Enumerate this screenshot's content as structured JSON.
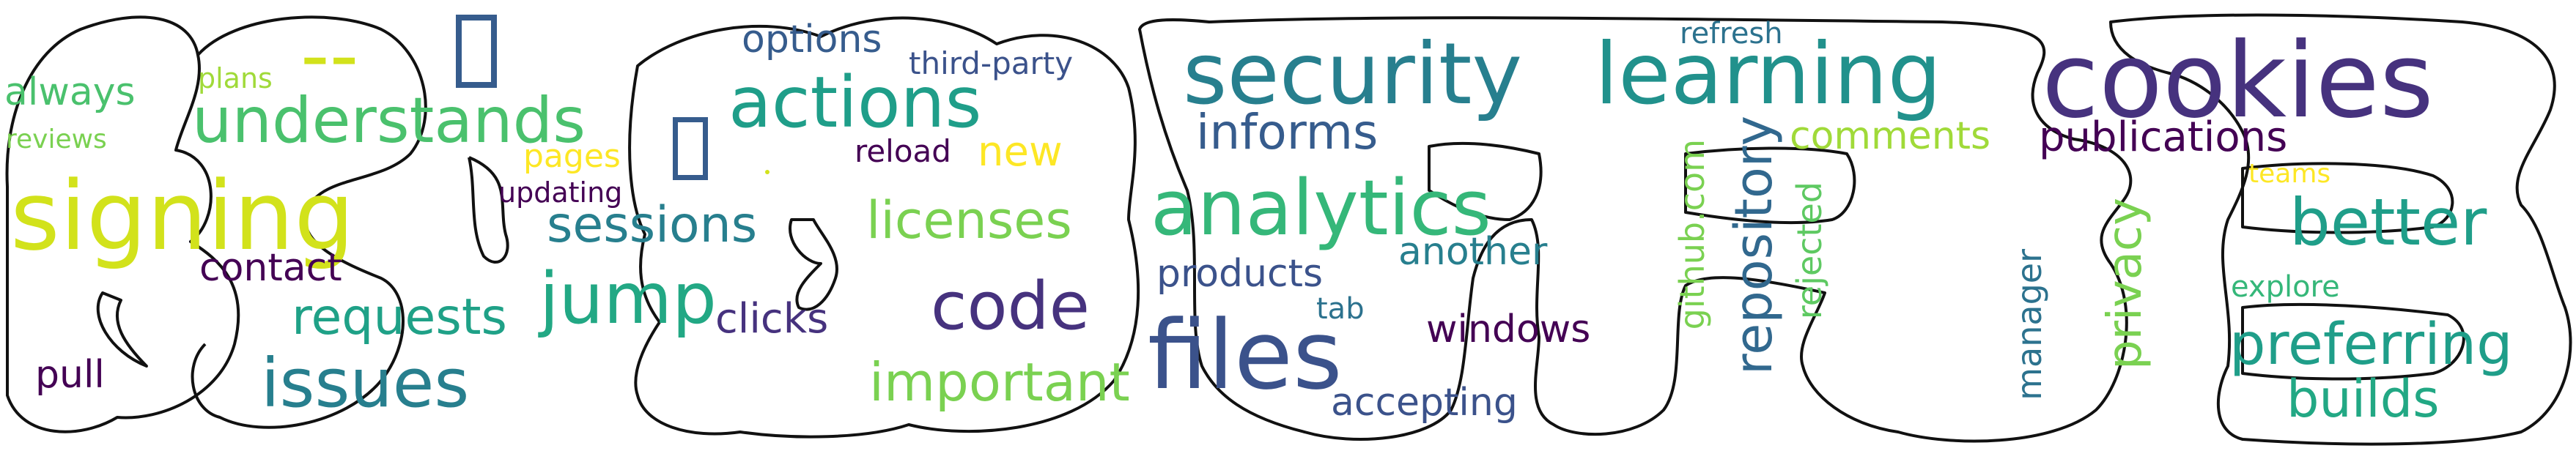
{
  "colors": {
    "outline": "#111111",
    "palette": [
      "#440154",
      "#46327e",
      "#365c8d",
      "#277f8e",
      "#1fa187",
      "#4ac16d",
      "#a0da39",
      "#fde725"
    ]
  },
  "words": [
    {
      "text": "signing",
      "color": "#d2e21b"
    },
    {
      "text": "--",
      "color": "#d2e21b"
    },
    {
      "text": "understands",
      "color": "#4ac16d"
    },
    {
      "text": "always",
      "color": "#4ac16d"
    },
    {
      "text": "plans",
      "color": "#a0da39"
    },
    {
      "text": "reviews",
      "color": "#7ad151"
    },
    {
      "text": "pages",
      "color": "#fde725"
    },
    {
      "text": "updating",
      "color": "#440154"
    },
    {
      "text": "contact",
      "color": "#440154"
    },
    {
      "text": "sessions",
      "color": "#277f8e"
    },
    {
      "text": "requests",
      "color": "#1fa187"
    },
    {
      "text": "jump",
      "color": "#22a884"
    },
    {
      "text": "issues",
      "color": "#277f8e"
    },
    {
      "text": "pull",
      "color": "#440154"
    },
    {
      "text": "clicks",
      "color": "#46327e"
    },
    {
      "text": "options",
      "color": "#365c8d"
    },
    {
      "text": "third-party",
      "color": "#3b528b"
    },
    {
      "text": "actions",
      "color": "#1f9e89"
    },
    {
      "text": "reload",
      "color": "#440154"
    },
    {
      "text": "new",
      "color": "#fde725"
    },
    {
      "text": "licenses",
      "color": "#7ad151"
    },
    {
      "text": "code",
      "color": "#46327e"
    },
    {
      "text": "important",
      "color": "#7ad151"
    },
    {
      "text": "security",
      "color": "#277f8e"
    },
    {
      "text": "learning",
      "color": "#21918c"
    },
    {
      "text": "cookies",
      "color": "#46327e"
    },
    {
      "text": "refresh",
      "color": "#2c728e"
    },
    {
      "text": "informs",
      "color": "#365c8d"
    },
    {
      "text": "analytics",
      "color": "#35b779"
    },
    {
      "text": "products",
      "color": "#3b528b"
    },
    {
      "text": "another",
      "color": "#277f8e"
    },
    {
      "text": "files",
      "color": "#3b528b"
    },
    {
      "text": "tab",
      "color": "#2c728e"
    },
    {
      "text": "windows",
      "color": "#440154"
    },
    {
      "text": "accepting",
      "color": "#3b528b"
    },
    {
      "text": "github.com",
      "color": "#7ad151"
    },
    {
      "text": "repository",
      "color": "#31688e"
    },
    {
      "text": "rejected",
      "color": "#5ec962"
    },
    {
      "text": "comments",
      "color": "#a0da39"
    },
    {
      "text": "publications",
      "color": "#440154"
    },
    {
      "text": "teams",
      "color": "#fde725"
    },
    {
      "text": "better",
      "color": "#1f9e89"
    },
    {
      "text": "manager",
      "color": "#2c728e"
    },
    {
      "text": "privacy",
      "color": "#7ad151"
    },
    {
      "text": "explore",
      "color": "#35b779"
    },
    {
      "text": "preferring",
      "color": "#1f9e89"
    },
    {
      "text": "builds",
      "color": "#22a884"
    }
  ]
}
